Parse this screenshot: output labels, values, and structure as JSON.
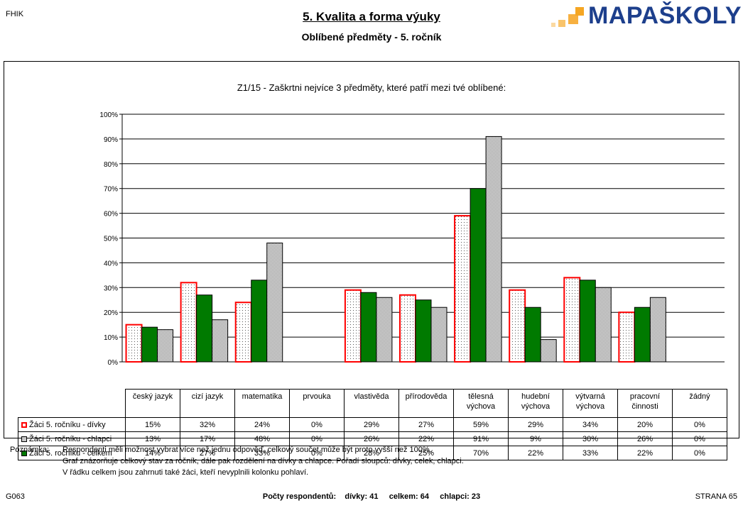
{
  "header": {
    "code": "FHIK",
    "title": "5. Kvalita a forma výuky",
    "subtitle": "Oblíbené předměty - 5. ročník",
    "logo": {
      "part1": "MAPA",
      "part2": "ŠKOLY"
    }
  },
  "colors": {
    "girls_border": "#ff0000",
    "boys_fill": "#c8c8c8",
    "total_fill": "#007a00",
    "logo_blue": "#1d3f8c",
    "logo_orange": "#f5a623"
  },
  "chart_data": {
    "type": "bar",
    "title": "Z1/15 - Zaškrtni nejvíce 3 předměty, které patří mezi tvé oblíbené:",
    "categories": [
      "český jazyk",
      "cizí jazyk",
      "matematika",
      "prvouka",
      "vlastivěda",
      "přírodověda",
      "tělesná výchova",
      "hudební výchova",
      "výtvarná výchova",
      "pracovní činnosti",
      "žádný"
    ],
    "series": [
      {
        "name": "Žáci 5. ročníku - dívky",
        "values": [
          15,
          32,
          24,
          0,
          29,
          27,
          59,
          29,
          34,
          20,
          0
        ]
      },
      {
        "name": "Žáci 5. ročníku - chlapci",
        "values": [
          13,
          17,
          48,
          0,
          26,
          22,
          91,
          9,
          30,
          26,
          0
        ]
      },
      {
        "name": "Žáci 5. ročníku - celkem",
        "values": [
          14,
          27,
          33,
          0,
          28,
          25,
          70,
          22,
          33,
          22,
          0
        ]
      }
    ],
    "bar_order": [
      "Žáci 5. ročníku - dívky",
      "Žáci 5. ročníku - celkem",
      "Žáci 5. ročníku - chlapci"
    ],
    "ylim": [
      0,
      100
    ],
    "yticks": [
      "0%",
      "10%",
      "20%",
      "30%",
      "40%",
      "50%",
      "60%",
      "70%",
      "80%",
      "90%",
      "100%"
    ],
    "grid": true,
    "legend": "data table below chart"
  },
  "table": {
    "rows": [
      {
        "label": "Žáci 5. ročníku - dívky",
        "swatch": "red",
        "cells": [
          "15%",
          "32%",
          "24%",
          "0%",
          "29%",
          "27%",
          "59%",
          "29%",
          "34%",
          "20%",
          "0%"
        ]
      },
      {
        "label": "Žáci 5. ročníku - chlapci",
        "swatch": "gray",
        "cells": [
          "13%",
          "17%",
          "48%",
          "0%",
          "26%",
          "22%",
          "91%",
          "9%",
          "30%",
          "26%",
          "0%"
        ]
      },
      {
        "label": "Žáci 5. ročníku - celkem",
        "swatch": "green",
        "cells": [
          "14%",
          "27%",
          "33%",
          "0%",
          "28%",
          "25%",
          "70%",
          "22%",
          "33%",
          "22%",
          "0%"
        ]
      }
    ]
  },
  "notes": {
    "label": "Poznámka:",
    "lines": [
      "Respondenti měli možnost vybrat více než jednu odpověď, celkový součet může být proto vyšší než 100%.",
      "Graf znázorňuje celkový stav za ročník, dále pak rozdělení na dívky a chlapce. Pořadí sloupců: dívky, celek, chlapci.",
      "V řádku celkem jsou zahrnuti také žáci, kteří nevyplnili kolonku pohlaví."
    ]
  },
  "footer": {
    "left": "G063",
    "middle": "Počty respondentů:    dívky: 41     celkem: 64     chlapci: 23",
    "right": "STRANA 65"
  }
}
